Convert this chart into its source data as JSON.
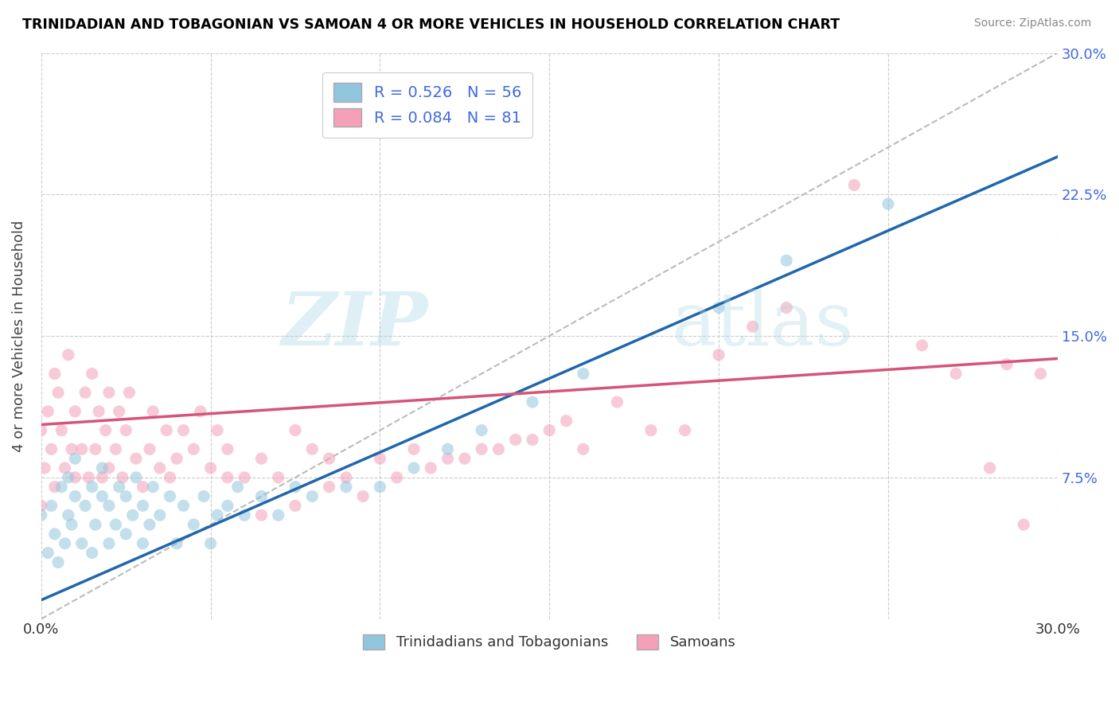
{
  "title": "TRINIDADIAN AND TOBAGONIAN VS SAMOAN 4 OR MORE VEHICLES IN HOUSEHOLD CORRELATION CHART",
  "source": "Source: ZipAtlas.com",
  "ylabel": "4 or more Vehicles in Household",
  "xmin": 0.0,
  "xmax": 0.3,
  "ymin": 0.0,
  "ymax": 0.3,
  "xticks": [
    0.0,
    0.05,
    0.1,
    0.15,
    0.2,
    0.25,
    0.3
  ],
  "yticks": [
    0.0,
    0.075,
    0.15,
    0.225,
    0.3
  ],
  "legend_labels": [
    "Trinidadians and Tobagonians",
    "Samoans"
  ],
  "blue_R": 0.526,
  "blue_N": 56,
  "pink_R": 0.084,
  "pink_N": 81,
  "blue_color": "#92c5de",
  "pink_color": "#f4a0b8",
  "blue_line_color": "#2166ac",
  "pink_line_color": "#d6537a",
  "diagonal_color": "#bbbbbb",
  "watermark_zip": "ZIP",
  "watermark_atlas": "atlas",
  "label_color": "#4169E1",
  "blue_line_x0": 0.0,
  "blue_line_y0": 0.01,
  "blue_line_x1": 0.3,
  "blue_line_y1": 0.245,
  "pink_line_x0": 0.0,
  "pink_line_y0": 0.103,
  "pink_line_x1": 0.3,
  "pink_line_y1": 0.138,
  "blue_scatter_x": [
    0.0,
    0.002,
    0.003,
    0.004,
    0.005,
    0.006,
    0.007,
    0.008,
    0.008,
    0.009,
    0.01,
    0.01,
    0.012,
    0.013,
    0.015,
    0.015,
    0.016,
    0.018,
    0.018,
    0.02,
    0.02,
    0.022,
    0.023,
    0.025,
    0.025,
    0.027,
    0.028,
    0.03,
    0.03,
    0.032,
    0.033,
    0.035,
    0.038,
    0.04,
    0.042,
    0.045,
    0.048,
    0.05,
    0.052,
    0.055,
    0.058,
    0.06,
    0.065,
    0.07,
    0.075,
    0.08,
    0.09,
    0.1,
    0.11,
    0.12,
    0.13,
    0.145,
    0.16,
    0.2,
    0.22,
    0.25
  ],
  "blue_scatter_y": [
    0.055,
    0.035,
    0.06,
    0.045,
    0.03,
    0.07,
    0.04,
    0.055,
    0.075,
    0.05,
    0.065,
    0.085,
    0.04,
    0.06,
    0.035,
    0.07,
    0.05,
    0.065,
    0.08,
    0.04,
    0.06,
    0.05,
    0.07,
    0.045,
    0.065,
    0.055,
    0.075,
    0.04,
    0.06,
    0.05,
    0.07,
    0.055,
    0.065,
    0.04,
    0.06,
    0.05,
    0.065,
    0.04,
    0.055,
    0.06,
    0.07,
    0.055,
    0.065,
    0.055,
    0.07,
    0.065,
    0.07,
    0.07,
    0.08,
    0.09,
    0.1,
    0.115,
    0.13,
    0.165,
    0.19,
    0.22
  ],
  "pink_scatter_x": [
    0.0,
    0.0,
    0.001,
    0.002,
    0.003,
    0.004,
    0.004,
    0.005,
    0.006,
    0.007,
    0.008,
    0.009,
    0.01,
    0.01,
    0.012,
    0.013,
    0.014,
    0.015,
    0.016,
    0.017,
    0.018,
    0.019,
    0.02,
    0.02,
    0.022,
    0.023,
    0.024,
    0.025,
    0.026,
    0.028,
    0.03,
    0.032,
    0.033,
    0.035,
    0.037,
    0.038,
    0.04,
    0.042,
    0.045,
    0.047,
    0.05,
    0.052,
    0.055,
    0.06,
    0.065,
    0.07,
    0.075,
    0.08,
    0.085,
    0.09,
    0.1,
    0.11,
    0.12,
    0.13,
    0.14,
    0.15,
    0.16,
    0.18,
    0.2,
    0.22,
    0.24,
    0.26,
    0.28,
    0.29,
    0.155,
    0.17,
    0.19,
    0.21,
    0.055,
    0.065,
    0.075,
    0.085,
    0.095,
    0.105,
    0.115,
    0.125,
    0.135,
    0.145,
    0.27,
    0.285,
    0.295
  ],
  "pink_scatter_y": [
    0.06,
    0.1,
    0.08,
    0.11,
    0.09,
    0.13,
    0.07,
    0.12,
    0.1,
    0.08,
    0.14,
    0.09,
    0.11,
    0.075,
    0.09,
    0.12,
    0.075,
    0.13,
    0.09,
    0.11,
    0.075,
    0.1,
    0.08,
    0.12,
    0.09,
    0.11,
    0.075,
    0.1,
    0.12,
    0.085,
    0.07,
    0.09,
    0.11,
    0.08,
    0.1,
    0.075,
    0.085,
    0.1,
    0.09,
    0.11,
    0.08,
    0.1,
    0.09,
    0.075,
    0.085,
    0.075,
    0.1,
    0.09,
    0.085,
    0.075,
    0.085,
    0.09,
    0.085,
    0.09,
    0.095,
    0.1,
    0.09,
    0.1,
    0.14,
    0.165,
    0.23,
    0.145,
    0.08,
    0.05,
    0.105,
    0.115,
    0.1,
    0.155,
    0.075,
    0.055,
    0.06,
    0.07,
    0.065,
    0.075,
    0.08,
    0.085,
    0.09,
    0.095,
    0.13,
    0.135,
    0.13
  ]
}
